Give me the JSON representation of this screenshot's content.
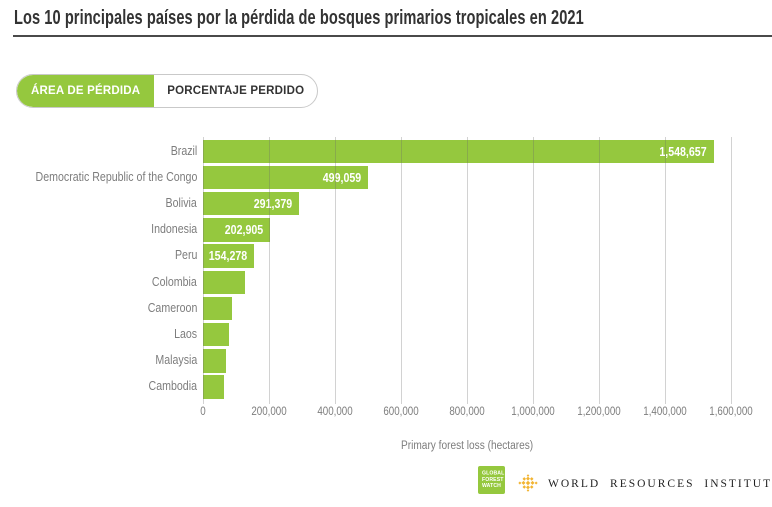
{
  "header": {
    "title": "Los 10 principales países por la pérdida de bosques primarios tropicales en 2021"
  },
  "tabs": [
    {
      "label": "ÁREA DE PÉRDIDA",
      "active": true
    },
    {
      "label": "PORCENTAJE PERDIDO",
      "active": false
    }
  ],
  "chart_data": {
    "type": "bar",
    "orientation": "horizontal",
    "title": "Los 10 principales países por la pérdida de bosques primarios tropicales en 2021",
    "categories": [
      "Brazil",
      "Democratic Republic of the Congo",
      "Bolivia",
      "Indonesia",
      "Peru",
      "Colombia",
      "Cameroon",
      "Laos",
      "Malaysia",
      "Cambodia"
    ],
    "values": [
      1548657,
      499059,
      291379,
      202905,
      154278,
      127000,
      89000,
      80000,
      71000,
      64000
    ],
    "bar_labels": [
      "1,548,657",
      "499,059",
      "291,379",
      "202,905",
      "154,278",
      "",
      "",
      "",
      "",
      ""
    ],
    "xlabel": "Primary forest loss (hectares)",
    "xlim": [
      0,
      1600000
    ],
    "x_tick_values": [
      0,
      200000,
      400000,
      600000,
      800000,
      1000000,
      1200000,
      1400000,
      1600000
    ],
    "x_tick_labels": [
      "0",
      "200,000",
      "400,000",
      "600,000",
      "800,000",
      "1,000,000",
      "1,200,000",
      "1,400,000",
      "1,600,000"
    ],
    "grid": "vertical",
    "legend": "none"
  },
  "colors": {
    "accent_green": "#95c83e",
    "wri_gold": "#f2b431",
    "label_gray": "#7d7d7d",
    "title_dark": "#333333"
  },
  "footer": {
    "gfw_logo_lines": [
      "GLOBAL",
      "FOREST",
      "WATCH"
    ],
    "wri_name": "WORLD RESOURCES INSTITUTE"
  }
}
